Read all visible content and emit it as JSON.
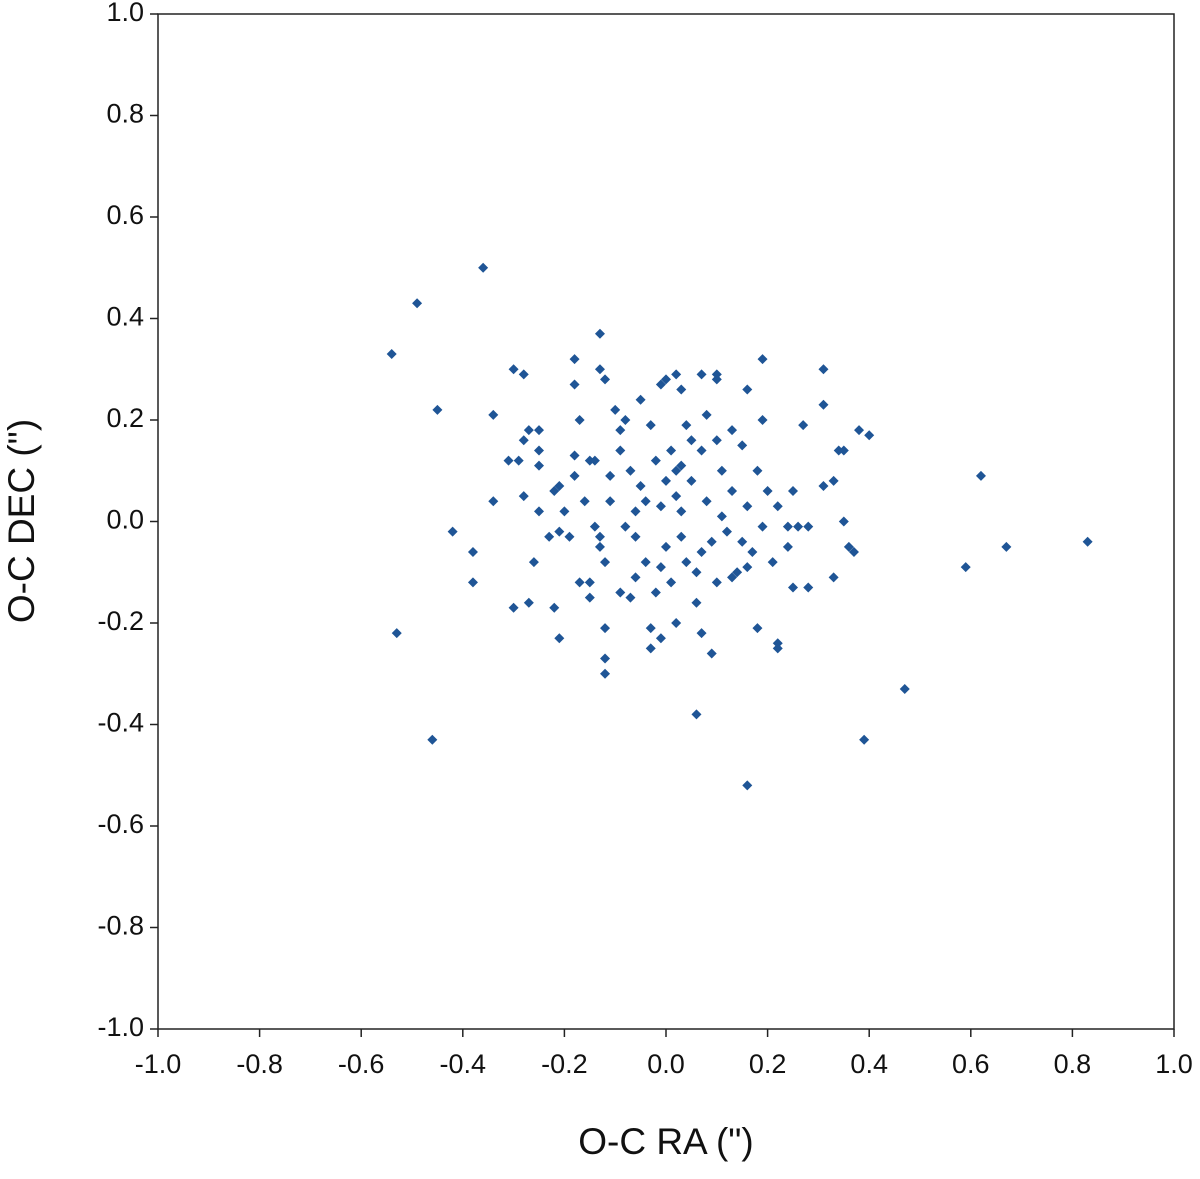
{
  "chart_data": {
    "type": "scatter",
    "x_label": "O-C RA (\")",
    "y_label": "O-C DEC (\")",
    "color": "#1f5596",
    "marker": "diamond",
    "xlim": [
      -1,
      1
    ],
    "ylim": [
      -1,
      1
    ],
    "xticks": [
      {
        "value": -1,
        "label": "-1.0"
      },
      {
        "value": -0.8,
        "label": "-0.8"
      },
      {
        "value": -0.6,
        "label": "-0.6"
      },
      {
        "value": -0.4,
        "label": "-0.4"
      },
      {
        "value": -0.2,
        "label": "-0.2"
      },
      {
        "value": 0,
        "label": "0.0"
      },
      {
        "value": 0.2,
        "label": "0.2"
      },
      {
        "value": 0.4,
        "label": "0.4"
      },
      {
        "value": 0.6,
        "label": "0.6"
      },
      {
        "value": 0.8,
        "label": "0.8"
      },
      {
        "value": 1,
        "label": "1.0"
      }
    ],
    "yticks": [
      {
        "value": -1,
        "label": "-1.0"
      },
      {
        "value": -0.8,
        "label": "-0.8"
      },
      {
        "value": -0.6,
        "label": "-0.6"
      },
      {
        "value": -0.4,
        "label": "-0.4"
      },
      {
        "value": -0.2,
        "label": "-0.2"
      },
      {
        "value": 0,
        "label": "0.0"
      },
      {
        "value": 0.2,
        "label": "0.2"
      },
      {
        "value": 0.4,
        "label": "0.4"
      },
      {
        "value": 0.6,
        "label": "0.6"
      },
      {
        "value": 0.8,
        "label": "0.8"
      },
      {
        "value": 1,
        "label": "1.0"
      }
    ],
    "x": [
      -0.36,
      -0.49,
      -0.54,
      -0.45,
      -0.53,
      -0.46,
      0.16,
      0.39,
      0.47,
      0.06,
      0.62,
      0.67,
      0.83,
      0.59,
      -0.13,
      0.19,
      0.31,
      0.31,
      0.4,
      0.38,
      0.27,
      -0.34,
      -0.34,
      -0.42,
      -0.38,
      -0.38,
      -0.3,
      -0.27,
      -0.3,
      -0.28,
      -0.18,
      -0.18,
      -0.13,
      -0.12,
      -0.21,
      -0.22,
      -0.12,
      -0.12,
      -0.12,
      -0.03,
      -0.03,
      -0.01,
      0.02,
      0.07,
      0.09,
      0.18,
      0.22,
      0.22,
      0.33,
      0.28,
      0.25,
      0.37,
      0.36,
      0.35,
      0.33,
      0.31,
      0.35,
      0.34,
      0.16,
      0.07,
      0.1,
      0.1,
      0.02,
      0,
      -0.01,
      0.03,
      -0.29,
      -0.31,
      -0.28,
      -0.26,
      -0.25,
      -0.25,
      -0.25,
      -0.28,
      -0.27,
      -0.25,
      -0.23,
      -0.22,
      -0.21,
      -0.2,
      -0.19,
      -0.18,
      -0.17,
      -0.15,
      -0.14,
      -0.14,
      -0.15,
      -0.17,
      -0.15,
      -0.13,
      -0.13,
      -0.12,
      -0.11,
      -0.1,
      -0.09,
      -0.09,
      -0.08,
      -0.07,
      -0.06,
      -0.06,
      -0.05,
      -0.05,
      -0.04,
      -0.03,
      -0.02,
      -0.01,
      0,
      0.01,
      0.02,
      0.02,
      0.03,
      0.03,
      0.04,
      0.05,
      0.06,
      0.07,
      0.08,
      0.09,
      0.1,
      0.11,
      0.12,
      0.13,
      0.14,
      0.15,
      0.16,
      0.17,
      0.18,
      0.19,
      0.2,
      0.21,
      0.22,
      0.24,
      0.24,
      0.25,
      0.26,
      0.28,
      -0.06,
      -0.09,
      -0.07,
      -0.02,
      0.01,
      0.04,
      0.06,
      0.1,
      0.13,
      0.16,
      0.19,
      0.13,
      0.08,
      0.05,
      -0.11,
      -0.18,
      -0.21,
      -0.04,
      0,
      0.11,
      0.15,
      -0.16,
      -0.08,
      0.07,
      0.03,
      -0.01
    ],
    "values": [
      0.5,
      0.43,
      0.33,
      0.22,
      -0.22,
      -0.43,
      -0.52,
      -0.43,
      -0.33,
      -0.38,
      0.09,
      -0.05,
      -0.04,
      -0.09,
      0.37,
      0.32,
      0.3,
      0.23,
      0.17,
      0.18,
      0.19,
      0.21,
      0.04,
      -0.02,
      -0.06,
      -0.12,
      -0.17,
      -0.16,
      0.3,
      0.29,
      0.32,
      0.27,
      0.3,
      0.28,
      -0.23,
      -0.17,
      -0.27,
      -0.3,
      -0.21,
      -0.21,
      -0.25,
      -0.23,
      -0.2,
      -0.22,
      -0.26,
      -0.21,
      -0.24,
      -0.25,
      -0.11,
      -0.13,
      -0.13,
      -0.06,
      -0.05,
      0,
      0.08,
      0.07,
      0.14,
      0.14,
      0.26,
      0.29,
      0.29,
      0.28,
      0.29,
      0.28,
      0.27,
      0.26,
      0.12,
      0.12,
      0.05,
      -0.08,
      0.02,
      0.14,
      0.18,
      0.16,
      0.18,
      0.11,
      -0.03,
      0.06,
      0.07,
      0.02,
      -0.03,
      0.09,
      0.2,
      0.12,
      0.12,
      -0.01,
      -0.12,
      -0.12,
      -0.15,
      -0.05,
      -0.03,
      -0.08,
      0.04,
      0.22,
      0.18,
      0.14,
      0.2,
      0.1,
      0.02,
      -0.03,
      0.24,
      0.07,
      -0.08,
      0.19,
      0.12,
      0.03,
      -0.05,
      0.14,
      0.1,
      0.05,
      0.02,
      -0.03,
      0.19,
      0.08,
      -0.1,
      0.14,
      0.04,
      -0.04,
      0.16,
      0.1,
      -0.02,
      0.06,
      -0.1,
      0.15,
      0.03,
      -0.06,
      0.1,
      -0.01,
      0.06,
      -0.08,
      0.03,
      -0.01,
      -0.05,
      0.06,
      -0.01,
      -0.01,
      -0.11,
      -0.14,
      -0.15,
      -0.14,
      -0.12,
      -0.08,
      -0.16,
      -0.12,
      -0.11,
      -0.09,
      0.2,
      0.18,
      0.21,
      0.16,
      0.09,
      0.13,
      -0.02,
      0.04,
      0.08,
      0.01,
      -0.04,
      0.04,
      -0.01,
      -0.06,
      0.11,
      -0.09
    ]
  }
}
